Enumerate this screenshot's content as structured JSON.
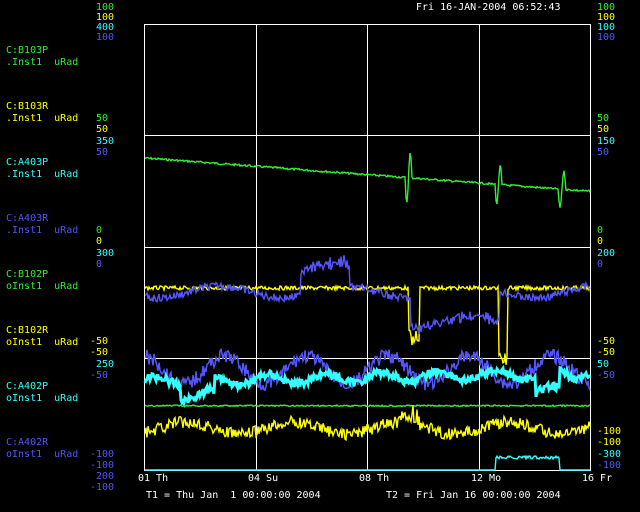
{
  "header": {
    "timestamp": "Fri 16-JAN-2004 06:52:43"
  },
  "colors": {
    "green": "#33ee33",
    "yellow": "#ffff00",
    "cyan": "#33ffff",
    "blue": "#5555ff",
    "white": "#ffffff",
    "grid": "#ffffff"
  },
  "left_scale_top": [
    "100",
    "100",
    "400",
    "100"
  ],
  "right_scale_top": [
    "100",
    "100",
    "100",
    "100"
  ],
  "channels": [
    {
      "name": "C:B103P",
      "sub": ".Inst1  uRad",
      "color": "green"
    },
    {
      "name": "C:B103R",
      "sub": ".Inst1  uRad",
      "color": "yellow"
    },
    {
      "name": "C:A403P",
      "sub": ".Inst1  uRad",
      "color": "cyan"
    },
    {
      "name": "C:A403R",
      "sub": ".Inst1  uRad",
      "color": "blue"
    },
    {
      "name": "C:B102P",
      "sub": "oInst1  uRad",
      "color": "green"
    },
    {
      "name": "C:B102R",
      "sub": "oInst1  uRad",
      "color": "yellow"
    },
    {
      "name": "C:A402P",
      "sub": "oInst1  uRad",
      "color": "cyan"
    },
    {
      "name": "C:A402R",
      "sub": "oInst1  uRad",
      "color": "blue"
    }
  ],
  "left_scale_1": [
    "50",
    "50",
    "350",
    "50"
  ],
  "right_scale_1": [
    "50",
    "50",
    "150",
    "50"
  ],
  "left_scale_2": [
    "0",
    "0",
    "300",
    "0"
  ],
  "right_scale_2": [
    "0",
    "0",
    "200",
    "0"
  ],
  "left_scale_3": [
    "-50",
    "-50",
    "250",
    "-50"
  ],
  "right_scale_3": [
    "-50",
    "-50",
    "50",
    "-50"
  ],
  "left_scale_bottom": [
    "-100",
    "-100",
    "200",
    "-100"
  ],
  "right_scale_bottom": [
    "-100",
    "-100",
    "-300",
    "-100"
  ],
  "x_ticks": [
    "01 Th",
    "04 Su",
    "08 Th",
    "12 Mo",
    "16 Fr"
  ],
  "footer": {
    "t1": "T1 = Thu Jan  1 00:00:00 2004",
    "t2": "T2 = Fri Jan 16 00:00:00 2004"
  }
}
